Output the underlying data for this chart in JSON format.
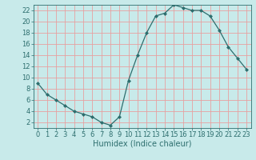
{
  "x": [
    0,
    1,
    2,
    3,
    4,
    5,
    6,
    7,
    8,
    9,
    10,
    11,
    12,
    13,
    14,
    15,
    16,
    17,
    18,
    19,
    20,
    21,
    22,
    23
  ],
  "y": [
    9,
    7,
    6,
    5,
    4,
    3.5,
    3,
    2,
    1.5,
    3,
    9.5,
    14,
    18,
    21,
    21.5,
    23,
    22.5,
    22,
    22,
    21,
    18.5,
    15.5,
    13.5,
    11.5
  ],
  "line_color": "#2d6e6e",
  "marker": "D",
  "marker_size": 2.0,
  "bg_color": "#c8eaea",
  "grid_color": "#e8a0a0",
  "xlabel": "Humidex (Indice chaleur)",
  "xlabel_fontsize": 7,
  "tick_fontsize": 6,
  "xlim": [
    -0.5,
    23.5
  ],
  "ylim": [
    1,
    23
  ],
  "yticks": [
    2,
    4,
    6,
    8,
    10,
    12,
    14,
    16,
    18,
    20,
    22
  ],
  "xticks": [
    0,
    1,
    2,
    3,
    4,
    5,
    6,
    7,
    8,
    9,
    10,
    11,
    12,
    13,
    14,
    15,
    16,
    17,
    18,
    19,
    20,
    21,
    22,
    23
  ]
}
